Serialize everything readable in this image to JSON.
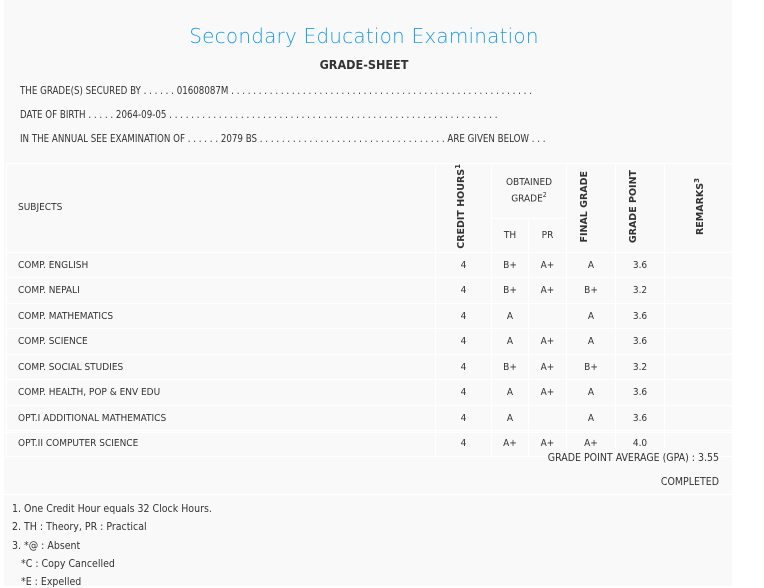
{
  "header": {
    "title": "Secondary Education Examination",
    "subtitle": "GRADE-SHEET"
  },
  "info": {
    "secured_by": "THE GRADE(S) SECURED BY . . . . . . 01608087M . . . . . . . . . . . . . . . . . . . . . . . . . . . . . . . . . . . . . . . . . . . . . . . . . . . . . . .",
    "dob": "DATE OF BIRTH . . . . . 2064-09-05 . . . . . . . . . . . . . . . . . . . . . . . . . . . . . . . . . . . . . . . . . . . . . . . . . . . . . . . . . . . .",
    "exam": "IN THE ANNUAL SEE EXAMINATION OF . . . . . . 2079 BS . . . . . . . . . . . . . . . . . . . . . . . . . . . . . . . . . . ARE GIVEN BELOW . . ."
  },
  "table": {
    "headers": {
      "subjects": "SUBJECTS",
      "credit": "CREDIT HOURS",
      "credit_sup": "1",
      "obtained": "OBTAINED GRADE",
      "obtained_sup": "2",
      "th": "TH",
      "pr": "PR",
      "final": "FINAL GRADE",
      "point": "GRADE POINT",
      "remarks": "REMARKS",
      "remarks_sup": "3"
    },
    "rows": [
      {
        "subject": "COMP. ENGLISH",
        "credit": "4",
        "th": "B+",
        "pr": "A+",
        "final": "A",
        "point": "3.6",
        "remarks": ""
      },
      {
        "subject": "COMP. NEPALI",
        "credit": "4",
        "th": "B+",
        "pr": "A+",
        "final": "B+",
        "point": "3.2",
        "remarks": ""
      },
      {
        "subject": "COMP. MATHEMATICS",
        "credit": "4",
        "th": "A",
        "pr": "",
        "final": "A",
        "point": "3.6",
        "remarks": ""
      },
      {
        "subject": "COMP. SCIENCE",
        "credit": "4",
        "th": "A",
        "pr": "A+",
        "final": "A",
        "point": "3.6",
        "remarks": ""
      },
      {
        "subject": "COMP. SOCIAL STUDIES",
        "credit": "4",
        "th": "B+",
        "pr": "A+",
        "final": "B+",
        "point": "3.2",
        "remarks": ""
      },
      {
        "subject": "COMP. HEALTH, POP & ENV EDU",
        "credit": "4",
        "th": "A",
        "pr": "A+",
        "final": "A",
        "point": "3.6",
        "remarks": ""
      },
      {
        "subject": "OPT.I ADDITIONAL MATHEMATICS",
        "credit": "4",
        "th": "A",
        "pr": "",
        "final": "A",
        "point": "3.6",
        "remarks": ""
      },
      {
        "subject": "OPT.II COMPUTER SCIENCE",
        "credit": "4",
        "th": "A+",
        "pr": "A+",
        "final": "A+",
        "point": "4.0",
        "remarks": ""
      }
    ]
  },
  "summary": {
    "gpa": "GRADE POINT AVERAGE (GPA) : 3.55",
    "status": "COMPLETED"
  },
  "notes": [
    "1. One Credit Hour equals 32 Clock Hours.",
    "2. TH : Theory, PR : Practical",
    "3. *@ : Absent",
    "   *C : Copy Cancelled",
    "   *E : Expelled"
  ]
}
